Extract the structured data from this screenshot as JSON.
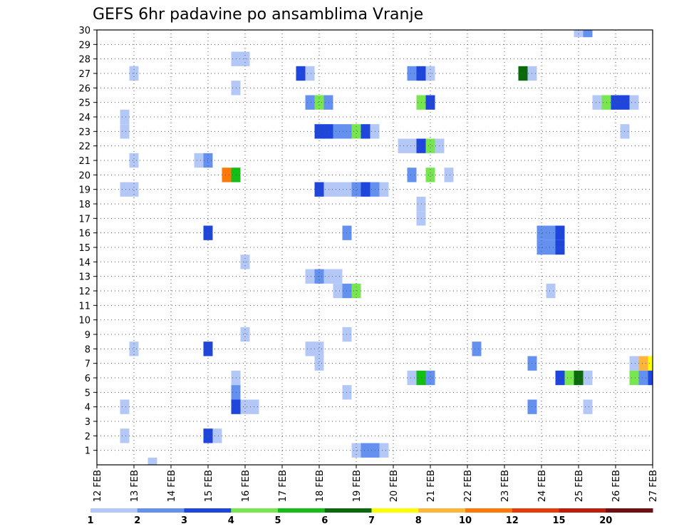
{
  "chart_data": {
    "type": "heatmap",
    "title": "GEFS 6hr padavine po ansamblima Vranje",
    "x_tick_labels": [
      "12 FEB",
      "13 FEB",
      "14 FEB",
      "15 FEB",
      "16 FEB",
      "17 FEB",
      "18 FEB",
      "19 FEB",
      "20 FEB",
      "21 FEB",
      "22 FEB",
      "23 FEB",
      "24 FEB",
      "25 FEB",
      "26 FEB",
      "27 FEB"
    ],
    "y_tick_labels": [
      "1",
      "2",
      "3",
      "4",
      "5",
      "6",
      "7",
      "8",
      "9",
      "10",
      "11",
      "12",
      "13",
      "14",
      "15",
      "16",
      "17",
      "18",
      "19",
      "20",
      "21",
      "22",
      "23",
      "24",
      "25",
      "26",
      "27",
      "28",
      "29",
      "30"
    ],
    "grid": "dotted",
    "color_scale": {
      "colors": [
        "#b4c8f8",
        "#6490f0",
        "#1e46dc",
        "#78e650",
        "#14be14",
        "#0a690a",
        "#ffff00",
        "#ffb43c",
        "#ff780a",
        "#e63c0a",
        "#be1e0a",
        "#701010"
      ],
      "labels": [
        "1",
        "2",
        "3",
        "4",
        "5",
        "6",
        "7",
        "8",
        "10",
        "12",
        "15",
        "20"
      ]
    },
    "cells": [
      {
        "member": 30,
        "day": 25,
        "step": 0,
        "bin": 0
      },
      {
        "member": 30,
        "day": 25,
        "step": 1,
        "bin": 1
      },
      {
        "member": 28,
        "day": 15,
        "step": 3,
        "bin": 0
      },
      {
        "member": 28,
        "day": 16,
        "step": 0,
        "bin": 0
      },
      {
        "member": 27,
        "day": 13,
        "step": 0,
        "bin": 0
      },
      {
        "member": 27,
        "day": 17,
        "step": 2,
        "bin": 2
      },
      {
        "member": 27,
        "day": 17,
        "step": 3,
        "bin": 0
      },
      {
        "member": 27,
        "day": 20,
        "step": 2,
        "bin": 1
      },
      {
        "member": 27,
        "day": 20,
        "step": 3,
        "bin": 2
      },
      {
        "member": 27,
        "day": 21,
        "step": 0,
        "bin": 0
      },
      {
        "member": 27,
        "day": 23,
        "step": 2,
        "bin": 5
      },
      {
        "member": 27,
        "day": 23,
        "step": 3,
        "bin": 0
      },
      {
        "member": 26,
        "day": 15,
        "step": 3,
        "bin": 0
      },
      {
        "member": 25,
        "day": 17,
        "step": 3,
        "bin": 1
      },
      {
        "member": 25,
        "day": 18,
        "step": 0,
        "bin": 3
      },
      {
        "member": 25,
        "day": 18,
        "step": 1,
        "bin": 1
      },
      {
        "member": 25,
        "day": 20,
        "step": 3,
        "bin": 3
      },
      {
        "member": 25,
        "day": 21,
        "step": 0,
        "bin": 2
      },
      {
        "member": 25,
        "day": 25,
        "step": 2,
        "bin": 0
      },
      {
        "member": 25,
        "day": 25,
        "step": 3,
        "bin": 3
      },
      {
        "member": 25,
        "day": 26,
        "step": 0,
        "bin": 2
      },
      {
        "member": 25,
        "day": 26,
        "step": 1,
        "bin": 2
      },
      {
        "member": 25,
        "day": 26,
        "step": 2,
        "bin": 0
      },
      {
        "member": 24,
        "day": 12,
        "step": 3,
        "bin": 0
      },
      {
        "member": 23,
        "day": 12,
        "step": 3,
        "bin": 0
      },
      {
        "member": 23,
        "day": 18,
        "step": 0,
        "bin": 2
      },
      {
        "member": 23,
        "day": 18,
        "step": 1,
        "bin": 2
      },
      {
        "member": 23,
        "day": 18,
        "step": 2,
        "bin": 1
      },
      {
        "member": 23,
        "day": 18,
        "step": 3,
        "bin": 1
      },
      {
        "member": 23,
        "day": 19,
        "step": 0,
        "bin": 3
      },
      {
        "member": 23,
        "day": 19,
        "step": 1,
        "bin": 2
      },
      {
        "member": 23,
        "day": 19,
        "step": 2,
        "bin": 0
      },
      {
        "member": 23,
        "day": 26,
        "step": 1,
        "bin": 0
      },
      {
        "member": 22,
        "day": 20,
        "step": 1,
        "bin": 0
      },
      {
        "member": 22,
        "day": 20,
        "step": 2,
        "bin": 0
      },
      {
        "member": 22,
        "day": 20,
        "step": 3,
        "bin": 2
      },
      {
        "member": 22,
        "day": 21,
        "step": 0,
        "bin": 3
      },
      {
        "member": 22,
        "day": 21,
        "step": 1,
        "bin": 0
      },
      {
        "member": 21,
        "day": 13,
        "step": 0,
        "bin": 0
      },
      {
        "member": 21,
        "day": 14,
        "step": 3,
        "bin": 0
      },
      {
        "member": 21,
        "day": 15,
        "step": 0,
        "bin": 1
      },
      {
        "member": 20,
        "day": 15,
        "step": 2,
        "bin": 8
      },
      {
        "member": 20,
        "day": 15,
        "step": 3,
        "bin": 4
      },
      {
        "member": 20,
        "day": 20,
        "step": 2,
        "bin": 1
      },
      {
        "member": 20,
        "day": 21,
        "step": 0,
        "bin": 3
      },
      {
        "member": 20,
        "day": 21,
        "step": 2,
        "bin": 0
      },
      {
        "member": 19,
        "day": 12,
        "step": 3,
        "bin": 0
      },
      {
        "member": 19,
        "day": 13,
        "step": 0,
        "bin": 0
      },
      {
        "member": 19,
        "day": 18,
        "step": 0,
        "bin": 2
      },
      {
        "member": 19,
        "day": 18,
        "step": 1,
        "bin": 0
      },
      {
        "member": 19,
        "day": 18,
        "step": 2,
        "bin": 0
      },
      {
        "member": 19,
        "day": 18,
        "step": 3,
        "bin": 0
      },
      {
        "member": 19,
        "day": 19,
        "step": 0,
        "bin": 1
      },
      {
        "member": 19,
        "day": 19,
        "step": 1,
        "bin": 2
      },
      {
        "member": 19,
        "day": 19,
        "step": 2,
        "bin": 1
      },
      {
        "member": 19,
        "day": 19,
        "step": 3,
        "bin": 0
      },
      {
        "member": 18,
        "day": 20,
        "step": 3,
        "bin": 0
      },
      {
        "member": 17,
        "day": 20,
        "step": 3,
        "bin": 0
      },
      {
        "member": 16,
        "day": 15,
        "step": 0,
        "bin": 2
      },
      {
        "member": 16,
        "day": 18,
        "step": 3,
        "bin": 1
      },
      {
        "member": 16,
        "day": 24,
        "step": 0,
        "bin": 1
      },
      {
        "member": 16,
        "day": 24,
        "step": 1,
        "bin": 1
      },
      {
        "member": 16,
        "day": 24,
        "step": 2,
        "bin": 2
      },
      {
        "member": 15,
        "day": 24,
        "step": 0,
        "bin": 1
      },
      {
        "member": 15,
        "day": 24,
        "step": 1,
        "bin": 1
      },
      {
        "member": 15,
        "day": 24,
        "step": 2,
        "bin": 2
      },
      {
        "member": 14,
        "day": 16,
        "step": 0,
        "bin": 0
      },
      {
        "member": 13,
        "day": 17,
        "step": 3,
        "bin": 0
      },
      {
        "member": 13,
        "day": 18,
        "step": 0,
        "bin": 1
      },
      {
        "member": 13,
        "day": 18,
        "step": 1,
        "bin": 0
      },
      {
        "member": 13,
        "day": 18,
        "step": 2,
        "bin": 0
      },
      {
        "member": 12,
        "day": 18,
        "step": 2,
        "bin": 0
      },
      {
        "member": 12,
        "day": 18,
        "step": 3,
        "bin": 1
      },
      {
        "member": 12,
        "day": 19,
        "step": 0,
        "bin": 3
      },
      {
        "member": 12,
        "day": 24,
        "step": 1,
        "bin": 0
      },
      {
        "member": 9,
        "day": 16,
        "step": 0,
        "bin": 0
      },
      {
        "member": 9,
        "day": 18,
        "step": 3,
        "bin": 0
      },
      {
        "member": 8,
        "day": 13,
        "step": 0,
        "bin": 0
      },
      {
        "member": 8,
        "day": 15,
        "step": 0,
        "bin": 2
      },
      {
        "member": 8,
        "day": 17,
        "step": 3,
        "bin": 0
      },
      {
        "member": 8,
        "day": 18,
        "step": 0,
        "bin": 0
      },
      {
        "member": 8,
        "day": 22,
        "step": 1,
        "bin": 1
      },
      {
        "member": 7,
        "day": 18,
        "step": 0,
        "bin": 0
      },
      {
        "member": 7,
        "day": 23,
        "step": 3,
        "bin": 1
      },
      {
        "member": 7,
        "day": 26,
        "step": 2,
        "bin": 0
      },
      {
        "member": 7,
        "day": 26,
        "step": 3,
        "bin": 7
      },
      {
        "member": 7,
        "day": 27,
        "step": 0,
        "bin": 6
      },
      {
        "member": 6,
        "day": 15,
        "step": 3,
        "bin": 0
      },
      {
        "member": 6,
        "day": 20,
        "step": 2,
        "bin": 0
      },
      {
        "member": 6,
        "day": 20,
        "step": 3,
        "bin": 4
      },
      {
        "member": 6,
        "day": 21,
        "step": 0,
        "bin": 1
      },
      {
        "member": 6,
        "day": 24,
        "step": 2,
        "bin": 2
      },
      {
        "member": 6,
        "day": 24,
        "step": 3,
        "bin": 3
      },
      {
        "member": 6,
        "day": 25,
        "step": 0,
        "bin": 5
      },
      {
        "member": 6,
        "day": 25,
        "step": 1,
        "bin": 0
      },
      {
        "member": 6,
        "day": 26,
        "step": 2,
        "bin": 3
      },
      {
        "member": 6,
        "day": 26,
        "step": 3,
        "bin": 1
      },
      {
        "member": 6,
        "day": 27,
        "step": 0,
        "bin": 2
      },
      {
        "member": 5,
        "day": 15,
        "step": 3,
        "bin": 1
      },
      {
        "member": 5,
        "day": 18,
        "step": 3,
        "bin": 0
      },
      {
        "member": 4,
        "day": 12,
        "step": 3,
        "bin": 0
      },
      {
        "member": 4,
        "day": 16,
        "step": 0,
        "bin": 0
      },
      {
        "member": 4,
        "day": 15,
        "step": 3,
        "bin": 2
      },
      {
        "member": 4,
        "day": 16,
        "step": 1,
        "bin": 0
      },
      {
        "member": 4,
        "day": 23,
        "step": 3,
        "bin": 1
      },
      {
        "member": 4,
        "day": 25,
        "step": 1,
        "bin": 0
      },
      {
        "member": 2,
        "day": 12,
        "step": 3,
        "bin": 0
      },
      {
        "member": 2,
        "day": 15,
        "step": 0,
        "bin": 2
      },
      {
        "member": 2,
        "day": 15,
        "step": 1,
        "bin": 0
      },
      {
        "member": 1,
        "day": 19,
        "step": 0,
        "bin": 0
      },
      {
        "member": 1,
        "day": 19,
        "step": 1,
        "bin": 1
      },
      {
        "member": 1,
        "day": 19,
        "step": 2,
        "bin": 1
      },
      {
        "member": 1,
        "day": 19,
        "step": 3,
        "bin": 0
      },
      {
        "member": 0,
        "day": 13,
        "step": 2,
        "bin": 0
      }
    ]
  }
}
